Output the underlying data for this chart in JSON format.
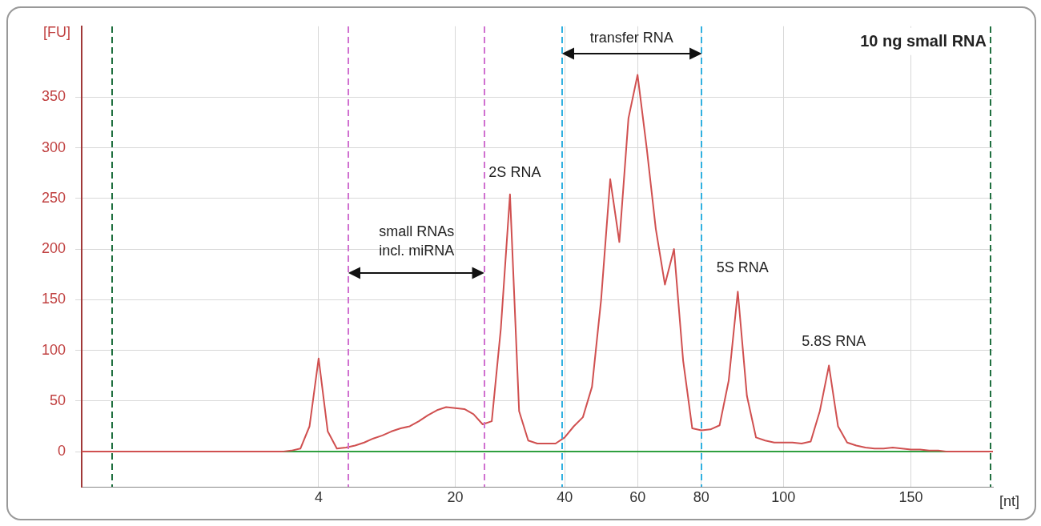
{
  "chart_data": {
    "type": "line",
    "title": "10 ng small RNA",
    "xlabel": "[nt]",
    "ylabel": "[FU]",
    "categories": [
      null,
      null,
      null,
      null,
      null,
      null,
      null,
      null,
      null,
      null,
      null,
      null,
      null,
      null,
      null,
      null,
      null,
      null,
      null,
      null,
      null,
      null,
      null,
      null,
      null,
      null,
      "4",
      null,
      null,
      null,
      null,
      null,
      null,
      null,
      null,
      null,
      null,
      null,
      null,
      null,
      null,
      "20",
      null,
      null,
      null,
      null,
      null,
      null,
      null,
      null,
      null,
      null,
      null,
      "40",
      null,
      null,
      null,
      null,
      null,
      null,
      null,
      "60",
      null,
      null,
      null,
      null,
      null,
      null,
      "80",
      null,
      null,
      null,
      null,
      null,
      null,
      null,
      null,
      "100",
      null,
      null,
      null,
      null,
      null,
      null,
      null,
      null,
      null,
      null,
      null,
      null,
      null,
      "150",
      null,
      null,
      null,
      null,
      null,
      null,
      null,
      null,
      null
    ],
    "ylim": [
      -35,
      420
    ],
    "yticks": [
      0,
      50,
      100,
      150,
      200,
      250,
      300,
      350
    ],
    "grid": true,
    "legend": false,
    "marker": "none",
    "line_style": "solid",
    "series": [
      {
        "color": "#d05050",
        "values": [
          0,
          0,
          0,
          0,
          0,
          0,
          0,
          0,
          0,
          0,
          0,
          0,
          0,
          0,
          0,
          0,
          0,
          0,
          0,
          0,
          0,
          0,
          0,
          1,
          3,
          25,
          92,
          20,
          3,
          4,
          6,
          9,
          13,
          16,
          20,
          23,
          25,
          30,
          36,
          41,
          44,
          43,
          42,
          37,
          27,
          30,
          122,
          254,
          40,
          11,
          8,
          8,
          8,
          14,
          25,
          34,
          64,
          150,
          269,
          207,
          329,
          372,
          300,
          220,
          165,
          200,
          90,
          23,
          21,
          22,
          26,
          70,
          158,
          55,
          14,
          11,
          9,
          9,
          9,
          8,
          10,
          40,
          85,
          25,
          9,
          6,
          4,
          3,
          3,
          4,
          3,
          2,
          2,
          1,
          1,
          0,
          0,
          0,
          0,
          0,
          0
        ]
      }
    ],
    "ref_lines": [
      {
        "axis": "y",
        "value": 0,
        "color": "#30a040",
        "line_style": "solid"
      }
    ],
    "annotations": [
      "2S RNA",
      "5S RNA",
      "5.8S RNA",
      "small RNAs incl. miRNA",
      "transfer RNA"
    ]
  }
}
